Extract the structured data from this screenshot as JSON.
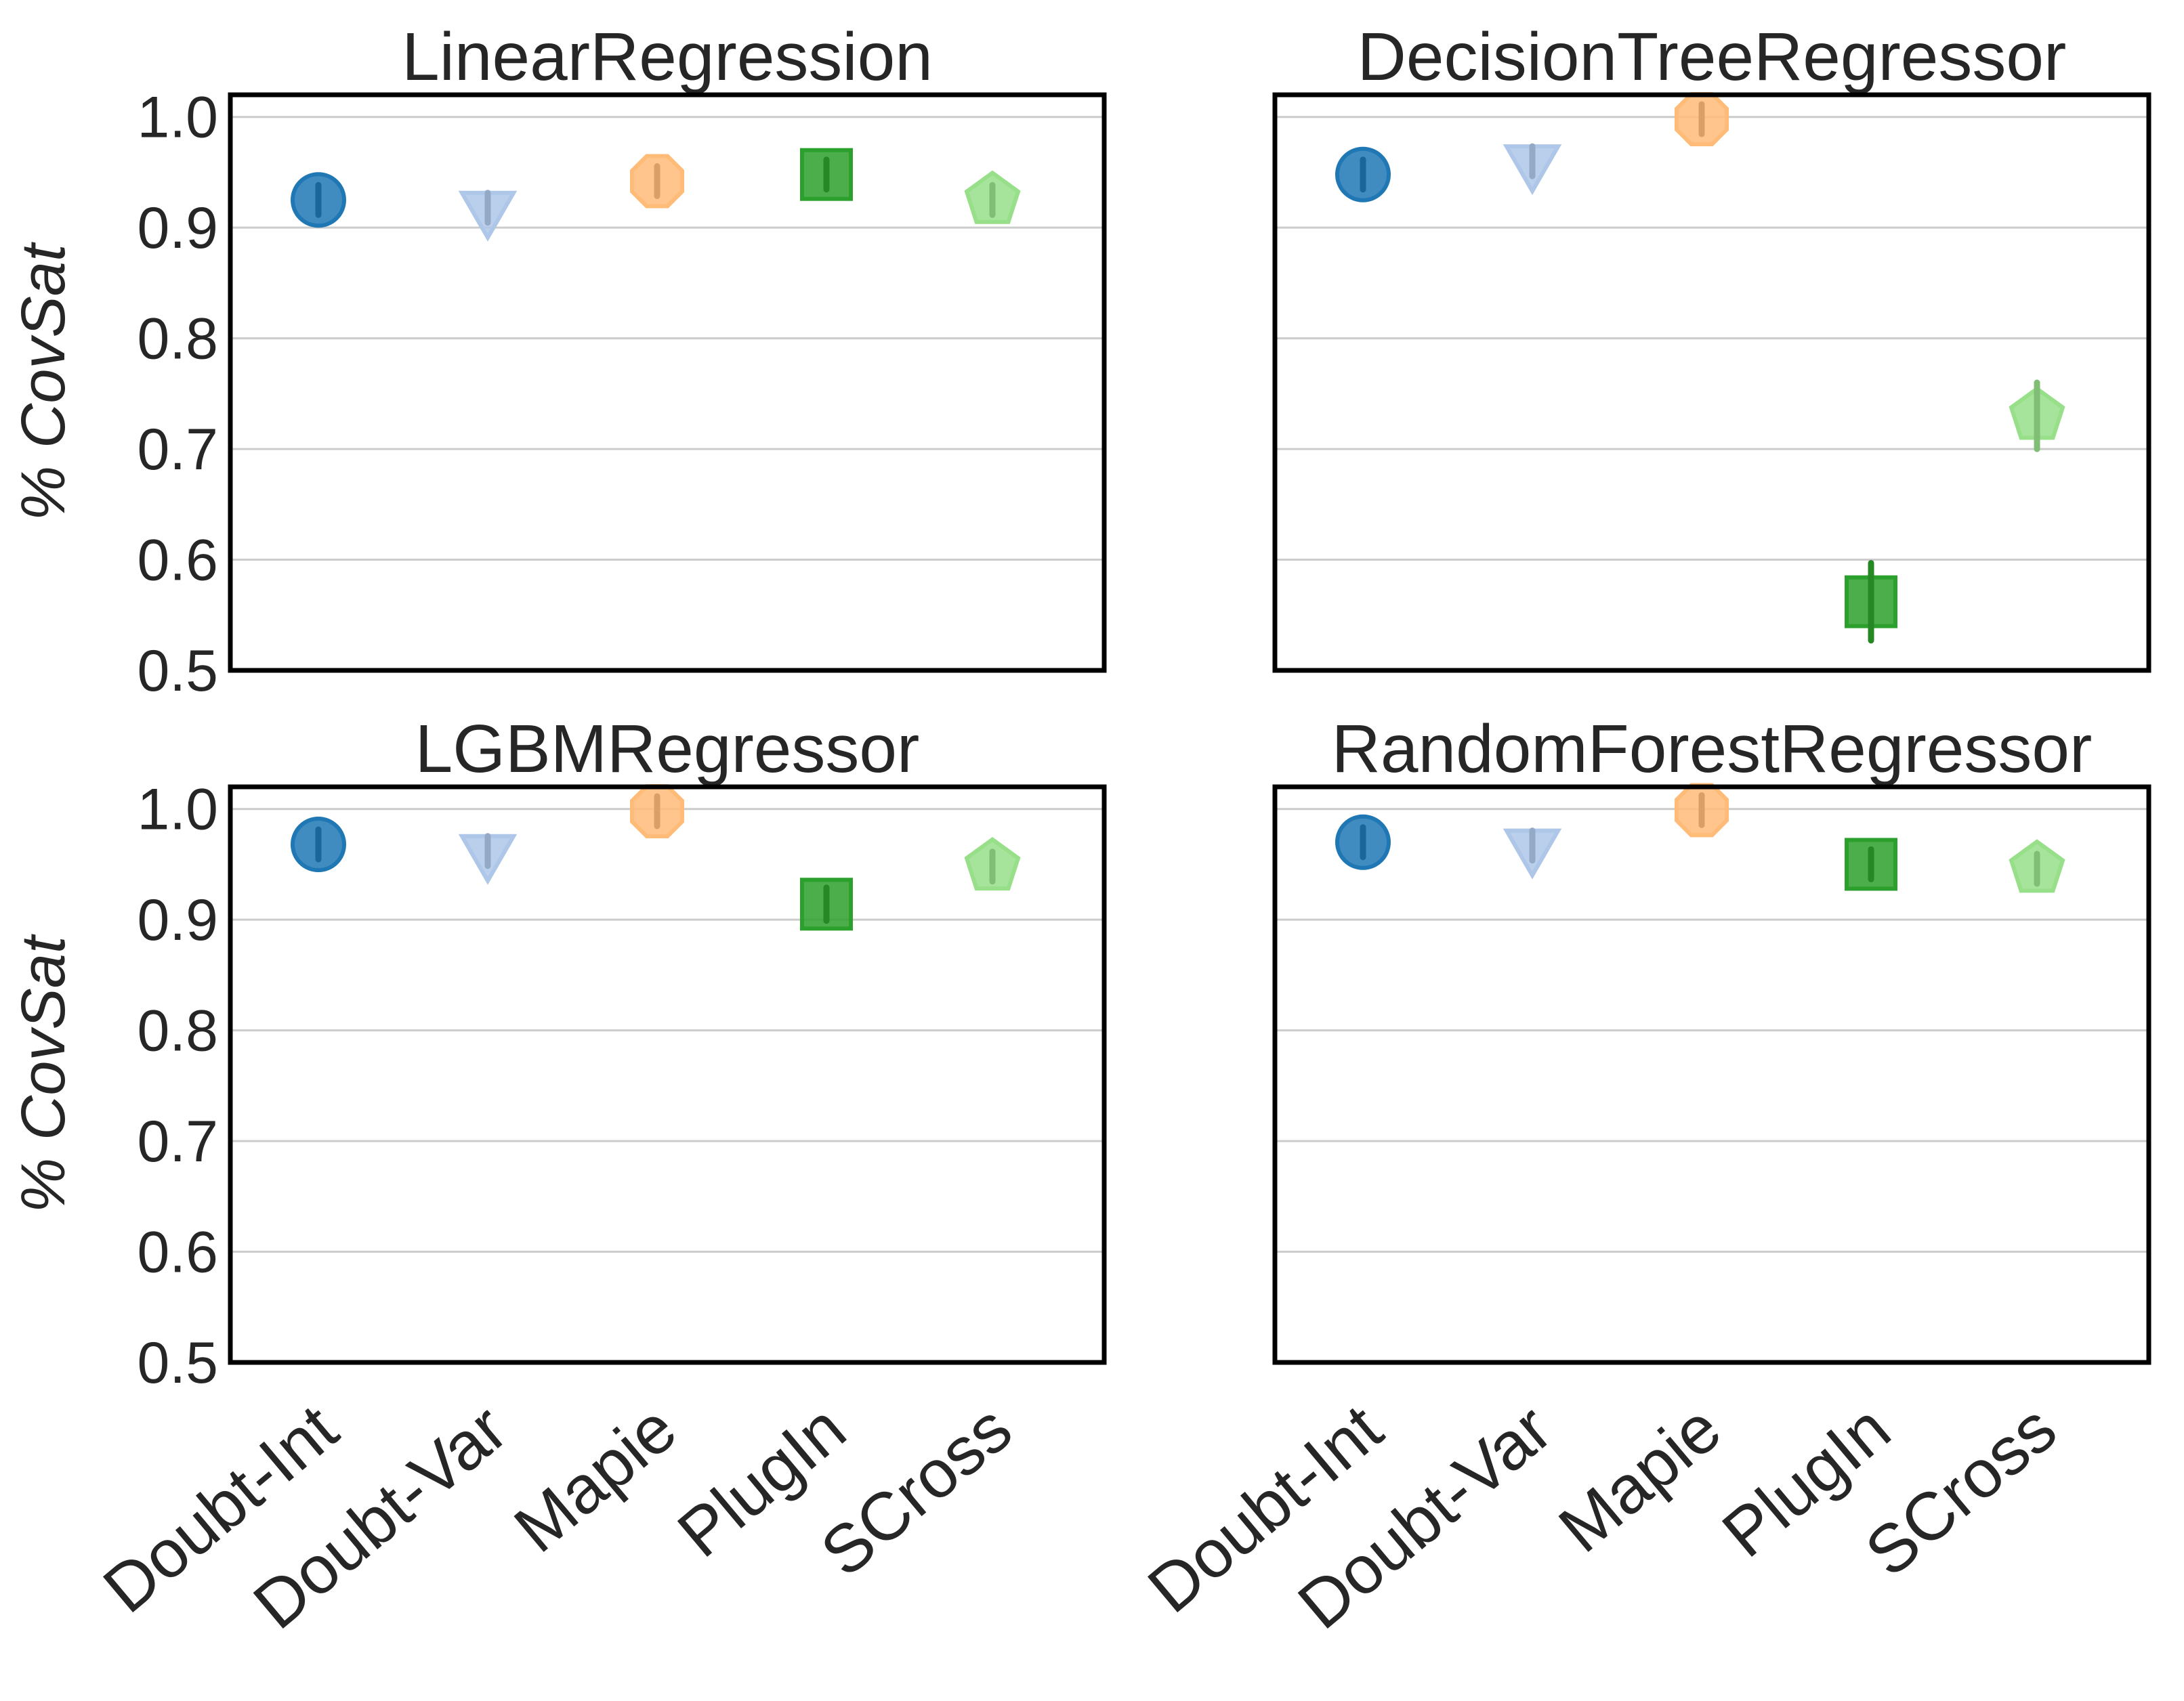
{
  "chart_data": [
    {
      "type": "scatter",
      "title": "LinearRegression",
      "ylabel": "% CovSat",
      "ylim": [
        0.5,
        1.02
      ],
      "yticks": [
        "0.5",
        "0.6",
        "0.7",
        "0.8",
        "0.9",
        "1.0"
      ],
      "categories": [
        "Doubt-Int",
        "Doubt-Var",
        "Mapie",
        "PlugIn",
        "SCross"
      ],
      "show_xticklabels": false,
      "grid": "horizontal",
      "series": [
        {
          "name": "Doubt-Int",
          "value": 0.925,
          "err": 0.01,
          "marker": "circle",
          "color": "#1f77b4"
        },
        {
          "name": "Doubt-Var",
          "value": 0.918,
          "err": 0.012,
          "marker": "triangle-down",
          "color": "#aec7e8"
        },
        {
          "name": "Mapie",
          "value": 0.942,
          "err": 0.008,
          "marker": "octagon",
          "color": "#ffbb78"
        },
        {
          "name": "PlugIn",
          "value": 0.948,
          "err": 0.01,
          "marker": "square",
          "color": "#2ca02c"
        },
        {
          "name": "SCross",
          "value": 0.925,
          "err": 0.01,
          "marker": "pentagon",
          "color": "#98df8a"
        }
      ]
    },
    {
      "type": "scatter",
      "title": "DecisionTreeRegressor",
      "ylabel": "",
      "ylim": [
        0.5,
        1.02
      ],
      "yticks": [],
      "categories": [
        "Doubt-Int",
        "Doubt-Var",
        "Mapie",
        "PlugIn",
        "SCross"
      ],
      "show_xticklabels": false,
      "grid": "horizontal",
      "series": [
        {
          "name": "Doubt-Int",
          "value": 0.948,
          "err": 0.008,
          "marker": "circle",
          "color": "#1f77b4"
        },
        {
          "name": "Doubt-Var",
          "value": 0.96,
          "err": 0.012,
          "marker": "triangle-down",
          "color": "#aec7e8"
        },
        {
          "name": "Mapie",
          "value": 0.998,
          "err": 0.004,
          "marker": "octagon",
          "color": "#ffbb78"
        },
        {
          "name": "PlugIn",
          "value": 0.562,
          "err": 0.035,
          "marker": "square",
          "color": "#2ca02c"
        },
        {
          "name": "SCross",
          "value": 0.73,
          "err": 0.03,
          "marker": "pentagon",
          "color": "#98df8a"
        }
      ]
    },
    {
      "type": "scatter",
      "title": "LGBMRegressor",
      "ylabel": "% CovSat",
      "ylim": [
        0.5,
        1.02
      ],
      "yticks": [
        "0.5",
        "0.6",
        "0.7",
        "0.8",
        "0.9",
        "1.0"
      ],
      "categories": [
        "Doubt-Int",
        "Doubt-Var",
        "Mapie",
        "PlugIn",
        "SCross"
      ],
      "show_xticklabels": true,
      "grid": "horizontal",
      "series": [
        {
          "name": "Doubt-Int",
          "value": 0.968,
          "err": 0.008,
          "marker": "circle",
          "color": "#1f77b4"
        },
        {
          "name": "Doubt-Var",
          "value": 0.962,
          "err": 0.01,
          "marker": "triangle-down",
          "color": "#aec7e8"
        },
        {
          "name": "Mapie",
          "value": 0.998,
          "err": 0.004,
          "marker": "octagon",
          "color": "#ffbb78"
        },
        {
          "name": "PlugIn",
          "value": 0.914,
          "err": 0.015,
          "marker": "square",
          "color": "#2ca02c"
        },
        {
          "name": "SCross",
          "value": 0.948,
          "err": 0.01,
          "marker": "pentagon",
          "color": "#98df8a"
        }
      ]
    },
    {
      "type": "scatter",
      "title": "RandomForestRegressor",
      "ylabel": "",
      "ylim": [
        0.5,
        1.02
      ],
      "yticks": [],
      "categories": [
        "Doubt-Int",
        "Doubt-Var",
        "Mapie",
        "PlugIn",
        "SCross"
      ],
      "show_xticklabels": true,
      "grid": "horizontal",
      "series": [
        {
          "name": "Doubt-Int",
          "value": 0.97,
          "err": 0.008,
          "marker": "circle",
          "color": "#1f77b4"
        },
        {
          "name": "Doubt-Var",
          "value": 0.967,
          "err": 0.012,
          "marker": "triangle-down",
          "color": "#aec7e8"
        },
        {
          "name": "Mapie",
          "value": 0.999,
          "err": 0.004,
          "marker": "octagon",
          "color": "#ffbb78"
        },
        {
          "name": "PlugIn",
          "value": 0.95,
          "err": 0.01,
          "marker": "square",
          "color": "#2ca02c"
        },
        {
          "name": "SCross",
          "value": 0.946,
          "err": 0.008,
          "marker": "pentagon",
          "color": "#98df8a"
        }
      ]
    }
  ]
}
